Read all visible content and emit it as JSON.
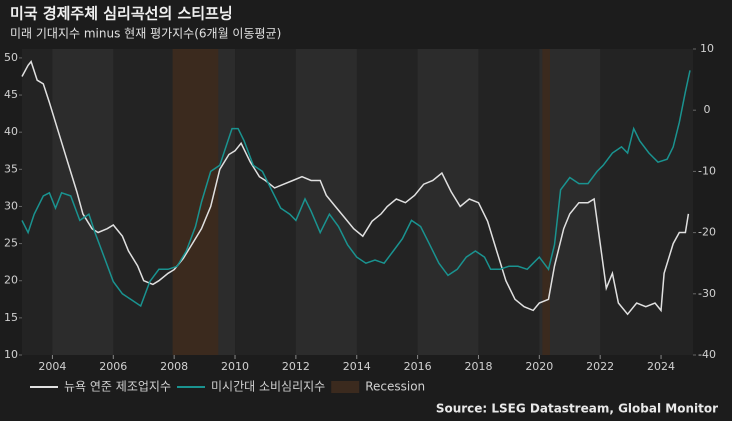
{
  "chart_data": {
    "type": "line",
    "title": "미국 경제주체 심리곡선의 스티프닝",
    "subtitle": "미래 기대지수 minus 현재 평가지수(6개월 이동평균)",
    "source": "Source: LSEG Datastream, Global Monitor",
    "xlim": [
      2003,
      2025.05
    ],
    "xticks": [
      2004,
      2006,
      2008,
      2010,
      2012,
      2014,
      2016,
      2018,
      2020,
      2022,
      2024
    ],
    "ylim": [
      10,
      51.2
    ],
    "yticks": [
      10,
      15,
      20,
      25,
      30,
      35,
      40,
      45,
      50
    ],
    "y2lim": [
      -40,
      10
    ],
    "y2ticks": [
      -40,
      -30,
      -20,
      -10,
      0,
      10
    ],
    "recession_name": "Recession",
    "recession_color": "#3b2a1e",
    "recessions": [
      [
        2007.95,
        2009.45
      ],
      [
        2020.1,
        2020.35
      ]
    ],
    "series": [
      {
        "name": "뉴욕 연준 제조업지수",
        "color": "#e0e0e0",
        "x": [
          2003.0,
          2003.2,
          2003.3,
          2003.5,
          2003.7,
          2003.9,
          2004.2,
          2004.5,
          2004.8,
          2005.0,
          2005.3,
          2005.5,
          2005.8,
          2006.0,
          2006.3,
          2006.5,
          2006.8,
          2007.0,
          2007.3,
          2007.5,
          2007.8,
          2008.0,
          2008.3,
          2008.6,
          2008.9,
          2009.2,
          2009.5,
          2009.8,
          2010.0,
          2010.2,
          2010.5,
          2010.8,
          2011.0,
          2011.3,
          2011.6,
          2011.9,
          2012.2,
          2012.5,
          2012.8,
          2013.0,
          2013.3,
          2013.6,
          2013.9,
          2014.2,
          2014.5,
          2014.8,
          2015.0,
          2015.3,
          2015.6,
          2015.9,
          2016.2,
          2016.5,
          2016.8,
          2017.1,
          2017.4,
          2017.7,
          2018.0,
          2018.3,
          2018.6,
          2018.9,
          2019.2,
          2019.5,
          2019.8,
          2020.0,
          2020.3,
          2020.5,
          2020.8,
          2021.0,
          2021.3,
          2021.6,
          2021.8,
          2022.0,
          2022.2,
          2022.4,
          2022.6,
          2022.9,
          2023.2,
          2023.5,
          2023.8,
          2024.0,
          2024.1,
          2024.4,
          2024.6,
          2024.8,
          2024.9
        ],
        "values": [
          47.5,
          49,
          49.5,
          47,
          46.5,
          44,
          40,
          36,
          32,
          29,
          27,
          26.5,
          27,
          27.5,
          26,
          24,
          22,
          20,
          19.5,
          20,
          21,
          21.5,
          23,
          25,
          27,
          30,
          35,
          37,
          37.5,
          38.5,
          36,
          34,
          33.5,
          32.5,
          33,
          33.5,
          34,
          33.5,
          33.5,
          31.5,
          30,
          28.5,
          27,
          26,
          28,
          29,
          30,
          31,
          30.5,
          31.5,
          33,
          33.5,
          34.5,
          32,
          30,
          31,
          30.5,
          28,
          24,
          20,
          17.5,
          16.5,
          16,
          17,
          17.5,
          22,
          27,
          29,
          30.5,
          30.5,
          31,
          25,
          19,
          21,
          17,
          15.5,
          17,
          16.5,
          17,
          16,
          21,
          25,
          26.5,
          26.5,
          29
        ]
      },
      {
        "name": "미시간대 소비심리지수",
        "color": "#1a9390",
        "axis": "y2",
        "x": [
          2003.0,
          2003.2,
          2003.4,
          2003.7,
          2003.9,
          2004.1,
          2004.3,
          2004.6,
          2004.9,
          2005.2,
          2005.4,
          2005.7,
          2006.0,
          2006.3,
          2006.6,
          2006.9,
          2007.2,
          2007.5,
          2007.8,
          2008.1,
          2008.4,
          2008.7,
          2008.9,
          2009.2,
          2009.5,
          2009.7,
          2009.9,
          2010.1,
          2010.3,
          2010.6,
          2010.9,
          2011.2,
          2011.5,
          2011.8,
          2012.0,
          2012.3,
          2012.5,
          2012.8,
          2013.1,
          2013.4,
          2013.7,
          2014.0,
          2014.3,
          2014.6,
          2014.9,
          2015.2,
          2015.5,
          2015.8,
          2016.1,
          2016.4,
          2016.7,
          2017.0,
          2017.3,
          2017.6,
          2017.9,
          2018.2,
          2018.4,
          2018.7,
          2019.0,
          2019.3,
          2019.6,
          2019.8,
          2020.0,
          2020.3,
          2020.5,
          2020.7,
          2021.0,
          2021.3,
          2021.6,
          2021.9,
          2022.1,
          2022.4,
          2022.7,
          2022.9,
          2023.1,
          2023.3,
          2023.6,
          2023.9,
          2024.2,
          2024.4,
          2024.6,
          2024.8,
          2024.95
        ],
        "values": [
          -18,
          -20,
          -17,
          -14,
          -13.5,
          -16,
          -13.5,
          -14,
          -18,
          -17,
          -20,
          -24,
          -28,
          -30,
          -31,
          -32,
          -28,
          -26,
          -26,
          -25.5,
          -23,
          -19,
          -15,
          -10,
          -9,
          -6,
          -3,
          -3,
          -5,
          -9,
          -10,
          -13,
          -16,
          -17,
          -18,
          -14.5,
          -16.5,
          -20,
          -17,
          -19,
          -22,
          -24,
          -25,
          -24.5,
          -25,
          -23,
          -21,
          -18,
          -19,
          -22,
          -25,
          -27,
          -26,
          -24,
          -23,
          -24,
          -26,
          -26,
          -25.5,
          -25.5,
          -26,
          -25,
          -24,
          -26,
          -22,
          -13,
          -11,
          -12,
          -12,
          -10,
          -9,
          -7,
          -6,
          -7,
          -3,
          -5,
          -7,
          -8.5,
          -8,
          -6,
          -2,
          3,
          6.5
        ]
      }
    ]
  }
}
